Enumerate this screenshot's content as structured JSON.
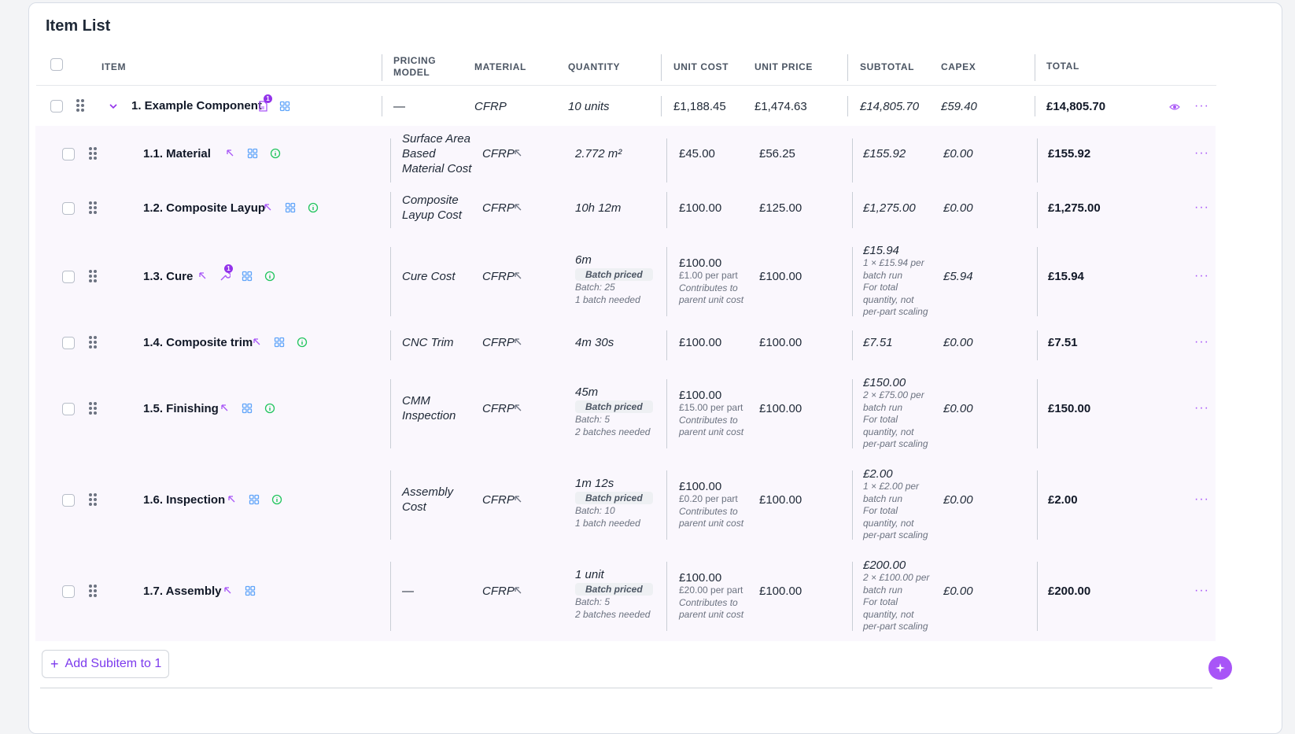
{
  "title": "Item List",
  "headers": {
    "item": "ITEM",
    "pricing_model": "PRICING MODEL",
    "material": "MATERIAL",
    "quantity": "QUANTITY",
    "unit_cost": "UNIT COST",
    "unit_price": "UNIT PRICE",
    "subtotal": "SUBTOTAL",
    "capex": "CAPEX",
    "total": "TOTAL"
  },
  "parent": {
    "name": "1. Example Component",
    "doc_badge": "1",
    "pricing_model": "—",
    "material": "CFRP",
    "quantity": "10 units",
    "unit_cost": "£1,188.45",
    "unit_price": "£1,474.63",
    "subtotal": "£14,805.70",
    "capex": "£59.40",
    "total": "£14,805.70"
  },
  "rows": [
    {
      "name": "1.1. Material",
      "pm": [
        "Surface Area",
        "Based",
        "Material Cost"
      ],
      "material": "CFRP",
      "qty": "2.772 m²",
      "unit_cost": "£45.00",
      "unit_price": "£56.25",
      "subtotal": "£155.92",
      "capex": "£0.00",
      "total": "£155.92"
    },
    {
      "name": "1.2. Composite Layup",
      "pm": [
        "Composite",
        "Layup Cost"
      ],
      "material": "CFRP",
      "qty": "10h 12m",
      "unit_cost": "£100.00",
      "unit_price": "£125.00",
      "subtotal": "£1,275.00",
      "capex": "£0.00",
      "total": "£1,275.00"
    },
    {
      "name": "1.3. Cure",
      "tool_badge": "1",
      "pm": [
        "Cure Cost"
      ],
      "material": "CFRP",
      "qty": "6m",
      "batch_label": "Batch priced",
      "batch_size": "Batch: 25",
      "batches": "1 batch needed",
      "unit_cost": "£100.00",
      "per_part": "£1.00 per part",
      "contrib": [
        "Contributes to",
        "parent unit cost"
      ],
      "unit_price": "£100.00",
      "subtotal": "£15.94",
      "sub_detail": [
        "1 × £15.94 per",
        "batch run",
        "For total",
        "quantity, not",
        "per-part scaling"
      ],
      "capex": "£5.94",
      "total": "£15.94"
    },
    {
      "name": "1.4. Composite trim",
      "pm": [
        "CNC Trim"
      ],
      "material": "CFRP",
      "qty": "4m 30s",
      "unit_cost": "£100.00",
      "unit_price": "£100.00",
      "subtotal": "£7.51",
      "capex": "£0.00",
      "total": "£7.51"
    },
    {
      "name": "1.5. Finishing",
      "pm": [
        "CMM",
        "Inspection"
      ],
      "material": "CFRP",
      "qty": "45m",
      "batch_label": "Batch priced",
      "batch_size": "Batch: 5",
      "batches": "2 batches needed",
      "unit_cost": "£100.00",
      "per_part": "£15.00 per part",
      "contrib": [
        "Contributes to",
        "parent unit cost"
      ],
      "unit_price": "£100.00",
      "subtotal": "£150.00",
      "sub_detail": [
        "2 × £75.00 per",
        "batch run",
        "For total",
        "quantity, not",
        "per-part scaling"
      ],
      "capex": "£0.00",
      "total": "£150.00"
    },
    {
      "name": "1.6. Inspection",
      "pm": [
        "Assembly",
        "Cost"
      ],
      "material": "CFRP",
      "qty": "1m 12s",
      "batch_label": "Batch priced",
      "batch_size": "Batch: 10",
      "batches": "1 batch needed",
      "unit_cost": "£100.00",
      "per_part": "£0.20 per part",
      "contrib": [
        "Contributes to",
        "parent unit cost"
      ],
      "unit_price": "£100.00",
      "subtotal": "£2.00",
      "sub_detail": [
        "1 × £2.00 per",
        "batch run",
        "For total",
        "quantity, not",
        "per-part scaling"
      ],
      "capex": "£0.00",
      "total": "£2.00"
    },
    {
      "name": "1.7. Assembly",
      "pm": [
        "—"
      ],
      "material": "CFRP",
      "qty": "1 unit",
      "batch_label": "Batch priced",
      "batch_size": "Batch: 5",
      "batches": "2 batches needed",
      "unit_cost": "£100.00",
      "per_part": "£20.00 per part",
      "contrib": [
        "Contributes to",
        "parent unit cost"
      ],
      "unit_price": "£100.00",
      "subtotal": "£200.00",
      "sub_detail": [
        "2 × £100.00 per",
        "batch run",
        "For total",
        "quantity, not",
        "per-part scaling"
      ],
      "capex": "£0.00",
      "total": "£200.00"
    }
  ],
  "add_button": "Add Subitem to 1",
  "add_button_icon": "+",
  "colors": {
    "accent": "#a855f7",
    "icon_blue": "#60a5fa",
    "icon_green": "#22c55e",
    "purple": "#9333ea"
  }
}
